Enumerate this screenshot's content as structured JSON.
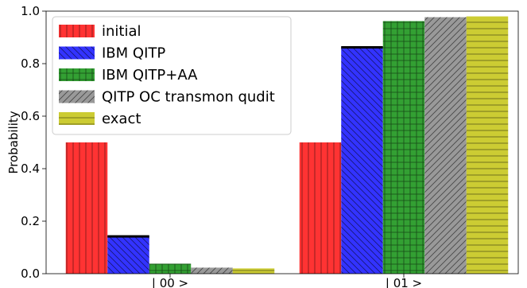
{
  "chart_data": {
    "type": "bar",
    "title": "",
    "xlabel": "",
    "ylabel": "Probability",
    "ylim": [
      0,
      1.0
    ],
    "yticks": [
      "0.0",
      "0.2",
      "0.4",
      "0.6",
      "0.8",
      "1.0"
    ],
    "categories": [
      "| 00 >",
      "| 01 >"
    ],
    "legend_position": "top-left",
    "grid": false,
    "series": [
      {
        "name": "initial",
        "values": [
          0.5,
          0.5
        ],
        "color": "#ff3333",
        "hatch": "vertical"
      },
      {
        "name": "IBM QITP",
        "values": [
          0.145,
          0.865
        ],
        "color": "#3333ff",
        "hatch": "diagonal-back",
        "top_edge_color": "#000000"
      },
      {
        "name": "IBM QITP+AA",
        "values": [
          0.038,
          0.962
        ],
        "color": "#33a033",
        "hatch": "grid"
      },
      {
        "name": "QITP OC transmon qudit",
        "values": [
          0.023,
          0.977
        ],
        "color": "#999999",
        "hatch": "diagonal"
      },
      {
        "name": "exact",
        "values": [
          0.02,
          0.98
        ],
        "color": "#cccc33",
        "hatch": "horizontal"
      }
    ]
  }
}
